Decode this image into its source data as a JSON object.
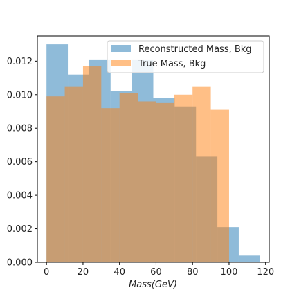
{
  "chart_data": {
    "type": "bar",
    "subtype": "overlaid-histogram",
    "title": "",
    "xlabel": "Mass(GeV)",
    "ylabel": "",
    "xlim": [
      -5,
      122
    ],
    "ylim": [
      0,
      0.0135
    ],
    "x_ticks": [
      0,
      20,
      40,
      60,
      80,
      100,
      120
    ],
    "x_tick_labels": [
      "0",
      "20",
      "40",
      "60",
      "80",
      "100",
      "120"
    ],
    "y_ticks": [
      0,
      0.002,
      0.004,
      0.006,
      0.008,
      0.01,
      0.012
    ],
    "y_tick_labels": [
      "0.000",
      "0.002",
      "0.004",
      "0.006",
      "0.008",
      "0.010",
      "0.012"
    ],
    "grid": false,
    "legend_position": "top-right",
    "series": [
      {
        "name": "Reconstructed Mass, Bkg",
        "color": "#1f77b4",
        "alpha": 0.5,
        "bin_edges": [
          0,
          11.7,
          23.4,
          35.1,
          46.8,
          58.5,
          70.2,
          81.9,
          93.6,
          105.3,
          117.0
        ],
        "values": [
          0.013,
          0.0112,
          0.0121,
          0.0102,
          0.0121,
          0.0098,
          0.0093,
          0.0063,
          0.0021,
          0.0004
        ]
      },
      {
        "name": "True Mass, Bkg",
        "color": "#ff7f0e",
        "alpha": 0.5,
        "bin_edges": [
          0,
          10,
          20,
          30,
          40,
          50,
          60,
          70,
          80,
          90,
          100
        ],
        "values": [
          0.0099,
          0.0105,
          0.0117,
          0.0092,
          0.0101,
          0.0096,
          0.0095,
          0.01,
          0.0105,
          0.0091
        ]
      }
    ]
  }
}
